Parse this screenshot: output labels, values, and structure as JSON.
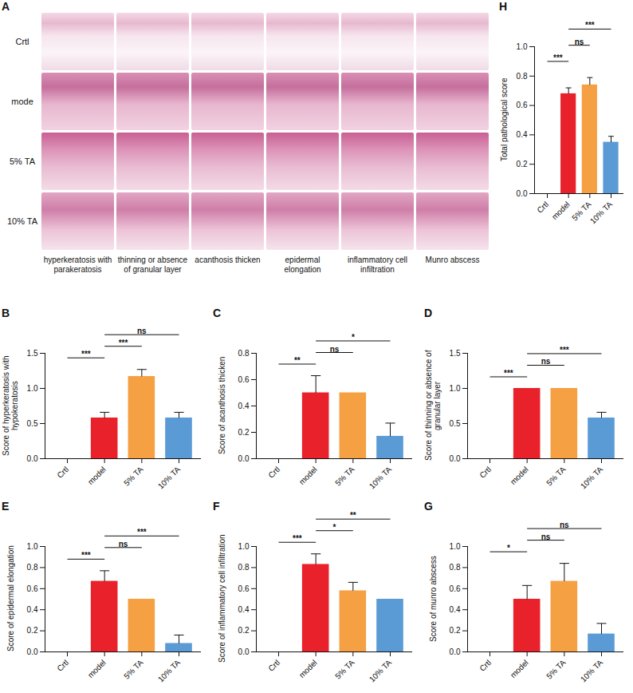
{
  "chart_data": [
    {
      "panel": "B",
      "type": "bar",
      "ylabel": "Score of hyperkeratosis with hypokeratosis",
      "categories": [
        "Crtl",
        "model",
        "5% TA",
        "10% TA"
      ],
      "values": [
        0,
        0.58,
        1.17,
        0.58
      ],
      "errors": [
        0,
        0.08,
        0.1,
        0.08
      ],
      "colors": [
        "#9e9e9e",
        "#e8212b",
        "#f5a043",
        "#5b9bd5"
      ],
      "ylim": [
        0,
        1.5
      ],
      "yticks": [
        {
          "value": 0,
          "label": "0.0"
        },
        {
          "value": 0.5,
          "label": "0.5"
        },
        {
          "value": 1,
          "label": "1.0"
        },
        {
          "value": 1.5,
          "label": "1.5"
        }
      ],
      "comparisons": [
        {
          "pair": [
            "Crtl",
            "model"
          ],
          "label": "***"
        },
        {
          "pair": [
            "model",
            "5% TA"
          ],
          "label": "***"
        },
        {
          "pair": [
            "model",
            "10% TA"
          ],
          "label": "ns"
        }
      ]
    },
    {
      "panel": "C",
      "type": "bar",
      "ylabel": "Score of acanthosis thicken",
      "categories": [
        "Crtl",
        "model",
        "5% TA",
        "10% TA"
      ],
      "values": [
        0,
        0.5,
        0.5,
        0.17
      ],
      "errors": [
        0,
        0.13,
        0,
        0.1
      ],
      "colors": [
        "#9e9e9e",
        "#e8212b",
        "#f5a043",
        "#5b9bd5"
      ],
      "ylim": [
        0,
        0.8
      ],
      "yticks": [
        {
          "value": 0,
          "label": "0.0"
        },
        0.2,
        0.4,
        0.6,
        0.8
      ],
      "comparisons": [
        {
          "pair": [
            "Crtl",
            "model"
          ],
          "label": "**"
        },
        {
          "pair": [
            "model",
            "5% TA"
          ],
          "label": "ns"
        },
        {
          "pair": [
            "model",
            "10% TA"
          ],
          "label": "*"
        }
      ]
    },
    {
      "panel": "D",
      "type": "bar",
      "ylabel": "Score of thinning or absence of granular layer",
      "categories": [
        "Crtl",
        "model",
        "5% TA",
        "10% TA"
      ],
      "values": [
        0,
        1.0,
        1.0,
        0.58
      ],
      "errors": [
        0,
        0,
        0,
        0.08
      ],
      "colors": [
        "#9e9e9e",
        "#e8212b",
        "#f5a043",
        "#5b9bd5"
      ],
      "ylim": [
        0,
        1.5
      ],
      "yticks": [
        {
          "value": 0,
          "label": "0.0"
        },
        {
          "value": 0.5,
          "label": "0.5"
        },
        {
          "value": 1,
          "label": "1.0"
        },
        {
          "value": 1.5,
          "label": "1.5"
        }
      ],
      "comparisons": [
        {
          "pair": [
            "Crtl",
            "model"
          ],
          "label": "***"
        },
        {
          "pair": [
            "model",
            "5% TA"
          ],
          "label": "ns"
        },
        {
          "pair": [
            "model",
            "10% TA"
          ],
          "label": "***"
        }
      ]
    },
    {
      "panel": "E",
      "type": "bar",
      "ylabel": "Score of epidermal elongation",
      "categories": [
        "Crtl",
        "model",
        "5% TA",
        "10% TA"
      ],
      "values": [
        0,
        0.67,
        0.5,
        0.08
      ],
      "errors": [
        0,
        0.1,
        0,
        0.08
      ],
      "colors": [
        "#9e9e9e",
        "#e8212b",
        "#f5a043",
        "#5b9bd5"
      ],
      "ylim": [
        0,
        1.0
      ],
      "yticks": [
        {
          "value": 0,
          "label": "0.0"
        },
        0.2,
        0.4,
        0.6,
        0.8,
        {
          "value": 1,
          "label": "1.0"
        }
      ],
      "comparisons": [
        {
          "pair": [
            "Crtl",
            "model"
          ],
          "label": "***"
        },
        {
          "pair": [
            "model",
            "5% TA"
          ],
          "label": "ns"
        },
        {
          "pair": [
            "model",
            "10% TA"
          ],
          "label": "***"
        }
      ]
    },
    {
      "panel": "F",
      "type": "bar",
      "ylabel": "Score of inflammatory cell infiltration",
      "categories": [
        "Crtl",
        "model",
        "5% TA",
        "10% TA"
      ],
      "values": [
        0,
        0.83,
        0.58,
        0.5
      ],
      "errors": [
        0,
        0.1,
        0.08,
        0
      ],
      "colors": [
        "#9e9e9e",
        "#e8212b",
        "#f5a043",
        "#5b9bd5"
      ],
      "ylim": [
        0,
        1.0
      ],
      "yticks": [
        {
          "value": 0,
          "label": "0.0"
        },
        0.2,
        0.4,
        0.6,
        0.8,
        {
          "value": 1,
          "label": "1.0"
        }
      ],
      "comparisons": [
        {
          "pair": [
            "Crtl",
            "model"
          ],
          "label": "***"
        },
        {
          "pair": [
            "model",
            "5% TA"
          ],
          "label": "*"
        },
        {
          "pair": [
            "model",
            "10% TA"
          ],
          "label": "**"
        }
      ]
    },
    {
      "panel": "G",
      "type": "bar",
      "ylabel": "Score of munro abscess",
      "categories": [
        "Crtl",
        "model",
        "5% TA",
        "10% TA"
      ],
      "values": [
        0,
        0.5,
        0.67,
        0.17
      ],
      "errors": [
        0,
        0.13,
        0.17,
        0.1
      ],
      "colors": [
        "#9e9e9e",
        "#e8212b",
        "#f5a043",
        "#5b9bd5"
      ],
      "ylim": [
        0,
        1.0
      ],
      "yticks": [
        {
          "value": 0,
          "label": "0.0"
        },
        0.2,
        0.4,
        0.6,
        0.8,
        {
          "value": 1,
          "label": "1.0"
        }
      ],
      "comparisons": [
        {
          "pair": [
            "Crtl",
            "model"
          ],
          "label": "*"
        },
        {
          "pair": [
            "model",
            "5% TA"
          ],
          "label": "ns"
        },
        {
          "pair": [
            "model",
            "10% TA"
          ],
          "label": "ns"
        }
      ]
    },
    {
      "panel": "H",
      "type": "bar",
      "ylabel": "Total pathological score",
      "categories": [
        "Crtl",
        "model",
        "5% TA",
        "10% TA"
      ],
      "values": [
        0,
        0.68,
        0.74,
        0.35
      ],
      "errors": [
        0,
        0.04,
        0.05,
        0.04
      ],
      "colors": [
        "#9e9e9e",
        "#e8212b",
        "#f5a043",
        "#5b9bd5"
      ],
      "ylim": [
        0,
        1.0
      ],
      "yticks": [
        {
          "value": 0,
          "label": "0.0"
        },
        0.2,
        0.4,
        0.6,
        0.8,
        {
          "value": 1,
          "label": "1.0"
        }
      ],
      "comparisons": [
        {
          "pair": [
            "Crtl",
            "model"
          ],
          "label": "***"
        },
        {
          "pair": [
            "model",
            "5% TA"
          ],
          "label": "ns"
        },
        {
          "pair": [
            "model",
            "10% TA"
          ],
          "label": "***"
        }
      ]
    }
  ],
  "image_panel": {
    "panel": "A",
    "rows": [
      "Crtl",
      "mode",
      "5% TA",
      "10% TA"
    ],
    "columns": [
      "hyperkeratosis with parakeratosis",
      "thinning or absence of granular layer",
      "acanthosis thicken",
      "epidermal elongation",
      "inflammatory cell infiltration",
      "Munro abscess"
    ]
  }
}
